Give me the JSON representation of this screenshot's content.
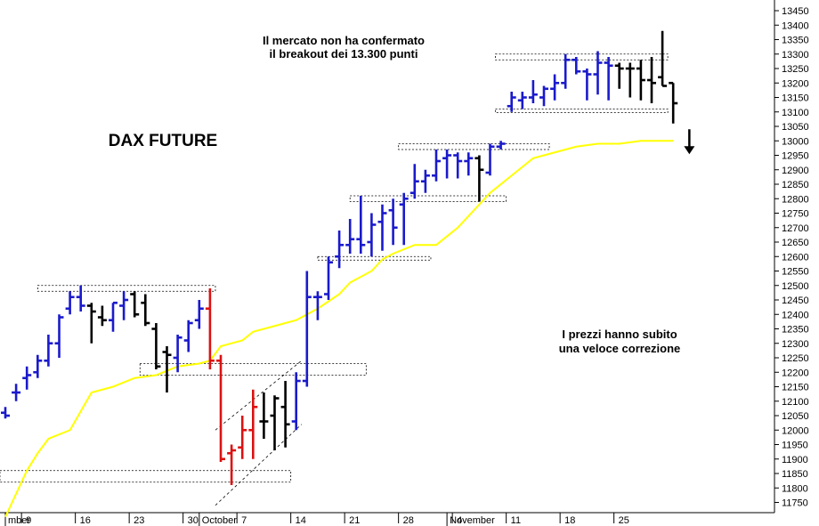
{
  "chart_data": {
    "type": "ohlc",
    "title": "DAX FUTURE",
    "annotations": [
      {
        "lines": [
          "Il mercato non ha confermato",
          "il breakout dei 13.300 punti"
        ]
      },
      {
        "lines": [
          "I prezzi hanno subito",
          "una veloce correzione"
        ]
      }
    ],
    "y_ticks": [
      11750,
      11800,
      11850,
      11900,
      11950,
      12000,
      12050,
      12100,
      12150,
      12200,
      12250,
      12300,
      12350,
      12400,
      12450,
      12500,
      12550,
      12600,
      12650,
      12700,
      12750,
      12800,
      12850,
      12900,
      12950,
      13000,
      13050,
      13100,
      13150,
      13200,
      13250,
      13300,
      13350,
      13400,
      13450
    ],
    "ylim": [
      11700,
      13475
    ],
    "x_ticks": [
      {
        "label": "9",
        "bar": 1.5
      },
      {
        "label": "16",
        "bar": 6.5
      },
      {
        "label": "23",
        "bar": 11.5
      },
      {
        "label": "30",
        "bar": 16.5
      },
      {
        "label": "7",
        "bar": 21.5
      },
      {
        "label": "14",
        "bar": 26.5
      },
      {
        "label": "21",
        "bar": 31.5
      },
      {
        "label": "28",
        "bar": 36.5
      },
      {
        "label": "4",
        "bar": 41.5
      },
      {
        "label": "11",
        "bar": 46.5
      },
      {
        "label": "18",
        "bar": 51.5
      },
      {
        "label": "25",
        "bar": 56.5
      }
    ],
    "month_labels": [
      {
        "label": "mber",
        "bar": 0.0
      },
      {
        "label": "October",
        "bar": 18.0
      },
      {
        "label": "November",
        "bar": 41.0
      }
    ],
    "series": [
      {
        "kind": "ohlc",
        "bars": [
          {
            "o": 12060,
            "h": 12080,
            "l": 12040,
            "c": 12050,
            "color": "#1a1acc"
          },
          {
            "o": 12130,
            "h": 12160,
            "l": 12100,
            "c": 12130,
            "color": "#1a1acc"
          },
          {
            "o": 12180,
            "h": 12220,
            "l": 12140,
            "c": 12190,
            "color": "#1a1acc"
          },
          {
            "o": 12200,
            "h": 12260,
            "l": 12180,
            "c": 12240,
            "color": "#1a1acc"
          },
          {
            "o": 12240,
            "h": 12330,
            "l": 12220,
            "c": 12300,
            "color": "#1a1acc"
          },
          {
            "o": 12300,
            "h": 12400,
            "l": 12250,
            "c": 12390,
            "color": "#1a1acc"
          },
          {
            "o": 12420,
            "h": 12480,
            "l": 12400,
            "c": 12460,
            "color": "#1a1acc"
          },
          {
            "o": 12460,
            "h": 12500,
            "l": 12410,
            "c": 12430,
            "color": "#1a1acc"
          },
          {
            "o": 12430,
            "h": 12440,
            "l": 12300,
            "c": 12410,
            "color": "#000000"
          },
          {
            "o": 12390,
            "h": 12430,
            "l": 12360,
            "c": 12380,
            "color": "#000000"
          },
          {
            "o": 12380,
            "h": 12440,
            "l": 12340,
            "c": 12440,
            "color": "#1a1acc"
          },
          {
            "o": 12430,
            "h": 12480,
            "l": 12380,
            "c": 12450,
            "color": "#1a1acc"
          },
          {
            "o": 12470,
            "h": 12480,
            "l": 12390,
            "c": 12400,
            "color": "#000000"
          },
          {
            "o": 12440,
            "h": 12470,
            "l": 12360,
            "c": 12370,
            "color": "#000000"
          },
          {
            "o": 12350,
            "h": 12370,
            "l": 12210,
            "c": 12220,
            "color": "#000000"
          },
          {
            "o": 12270,
            "h": 12290,
            "l": 12130,
            "c": 12260,
            "color": "#000000"
          },
          {
            "o": 12250,
            "h": 12330,
            "l": 12200,
            "c": 12320,
            "color": "#1a1acc"
          },
          {
            "o": 12310,
            "h": 12380,
            "l": 12270,
            "c": 12370,
            "color": "#1a1acc"
          },
          {
            "o": 12380,
            "h": 12450,
            "l": 12350,
            "c": 12420,
            "color": "#1a1acc"
          },
          {
            "o": 12420,
            "h": 12490,
            "l": 12210,
            "c": 12240,
            "color": "#dd1111"
          },
          {
            "o": 12240,
            "h": 12260,
            "l": 11890,
            "c": 11900,
            "color": "#dd1111"
          },
          {
            "o": 11920,
            "h": 11950,
            "l": 11810,
            "c": 11930,
            "color": "#dd1111"
          },
          {
            "o": 11940,
            "h": 12050,
            "l": 11900,
            "c": 12000,
            "color": "#dd1111"
          },
          {
            "o": 12000,
            "h": 12140,
            "l": 11900,
            "c": 12080,
            "color": "#dd1111"
          },
          {
            "o": 12030,
            "h": 12130,
            "l": 11970,
            "c": 12030,
            "color": "#000000"
          },
          {
            "o": 12050,
            "h": 12120,
            "l": 11930,
            "c": 12110,
            "color": "#000000"
          },
          {
            "o": 12080,
            "h": 12170,
            "l": 11940,
            "c": 12020,
            "color": "#000000"
          },
          {
            "o": 12030,
            "h": 12200,
            "l": 12000,
            "c": 12170,
            "color": "#1a1acc"
          },
          {
            "o": 12170,
            "h": 12550,
            "l": 12150,
            "c": 12460,
            "color": "#1a1acc"
          },
          {
            "o": 12460,
            "h": 12480,
            "l": 12380,
            "c": 12460,
            "color": "#1a1acc"
          },
          {
            "o": 12470,
            "h": 12600,
            "l": 12450,
            "c": 12580,
            "color": "#1a1acc"
          },
          {
            "o": 12600,
            "h": 12690,
            "l": 12560,
            "c": 12640,
            "color": "#1a1acc"
          },
          {
            "o": 12640,
            "h": 12730,
            "l": 12610,
            "c": 12660,
            "color": "#1a1acc"
          },
          {
            "o": 12660,
            "h": 12810,
            "l": 12610,
            "c": 12640,
            "color": "#1a1acc"
          },
          {
            "o": 12650,
            "h": 12750,
            "l": 12600,
            "c": 12710,
            "color": "#1a1acc"
          },
          {
            "o": 12720,
            "h": 12780,
            "l": 12620,
            "c": 12750,
            "color": "#1a1acc"
          },
          {
            "o": 12760,
            "h": 12800,
            "l": 12640,
            "c": 12700,
            "color": "#1a1acc"
          },
          {
            "o": 12780,
            "h": 12820,
            "l": 12640,
            "c": 12800,
            "color": "#1a1acc"
          },
          {
            "o": 12820,
            "h": 12920,
            "l": 12800,
            "c": 12860,
            "color": "#1a1acc"
          },
          {
            "o": 12860,
            "h": 12900,
            "l": 12820,
            "c": 12880,
            "color": "#1a1acc"
          },
          {
            "o": 12880,
            "h": 12970,
            "l": 12860,
            "c": 12930,
            "color": "#1a1acc"
          },
          {
            "o": 12940,
            "h": 12970,
            "l": 12870,
            "c": 12950,
            "color": "#1a1acc"
          },
          {
            "o": 12950,
            "h": 12960,
            "l": 12870,
            "c": 12930,
            "color": "#1a1acc"
          },
          {
            "o": 12930,
            "h": 12960,
            "l": 12880,
            "c": 12940,
            "color": "#1a1acc"
          },
          {
            "o": 12940,
            "h": 12950,
            "l": 12790,
            "c": 12900,
            "color": "#000000"
          },
          {
            "o": 12890,
            "h": 12990,
            "l": 12880,
            "c": 12980,
            "color": "#1a1acc"
          },
          {
            "o": 12980,
            "h": 13000,
            "l": 12970,
            "c": 12990,
            "color": "#1a1acc"
          },
          {
            "o": 13120,
            "h": 13170,
            "l": 13100,
            "c": 13150,
            "color": "#1a1acc"
          },
          {
            "o": 13140,
            "h": 13170,
            "l": 13110,
            "c": 13150,
            "color": "#1a1acc"
          },
          {
            "o": 13150,
            "h": 13210,
            "l": 13130,
            "c": 13160,
            "color": "#1a1acc"
          },
          {
            "o": 13150,
            "h": 13190,
            "l": 13120,
            "c": 13180,
            "color": "#1a1acc"
          },
          {
            "o": 13180,
            "h": 13230,
            "l": 13140,
            "c": 13200,
            "color": "#1a1acc"
          },
          {
            "o": 13200,
            "h": 13300,
            "l": 13180,
            "c": 13280,
            "color": "#1a1acc"
          },
          {
            "o": 13280,
            "h": 13290,
            "l": 13230,
            "c": 13240,
            "color": "#1a1acc"
          },
          {
            "o": 13240,
            "h": 13250,
            "l": 13140,
            "c": 13230,
            "color": "#1a1acc"
          },
          {
            "o": 13230,
            "h": 13310,
            "l": 13160,
            "c": 13270,
            "color": "#1a1acc"
          },
          {
            "o": 13270,
            "h": 13290,
            "l": 13140,
            "c": 13260,
            "color": "#1a1acc"
          },
          {
            "o": 13260,
            "h": 13270,
            "l": 13180,
            "c": 13250,
            "color": "#000000"
          },
          {
            "o": 13250,
            "h": 13270,
            "l": 13150,
            "c": 13250,
            "color": "#000000"
          },
          {
            "o": 13250,
            "h": 13280,
            "l": 13140,
            "c": 13210,
            "color": "#000000"
          },
          {
            "o": 13210,
            "h": 13290,
            "l": 13130,
            "c": 13200,
            "color": "#000000"
          },
          {
            "o": 13220,
            "h": 13380,
            "l": 13190,
            "c": 13190,
            "color": "#000000"
          },
          {
            "o": 13200,
            "h": 13200,
            "l": 13060,
            "c": 13130,
            "color": "#000000"
          }
        ]
      },
      {
        "kind": "line",
        "color": "#ffff00",
        "points": [
          [
            0,
            11700
          ],
          [
            2,
            11860
          ],
          [
            3,
            11920
          ],
          [
            4,
            11970
          ],
          [
            6,
            12000
          ],
          [
            8,
            12130
          ],
          [
            10,
            12150
          ],
          [
            12,
            12180
          ],
          [
            14,
            12190
          ],
          [
            16,
            12220
          ],
          [
            18,
            12230
          ],
          [
            19,
            12240
          ],
          [
            20,
            12290
          ],
          [
            22,
            12310
          ],
          [
            23,
            12340
          ],
          [
            25,
            12360
          ],
          [
            27,
            12380
          ],
          [
            29,
            12420
          ],
          [
            31,
            12470
          ],
          [
            32,
            12510
          ],
          [
            34,
            12550
          ],
          [
            35,
            12590
          ],
          [
            36,
            12610
          ],
          [
            38,
            12640
          ],
          [
            40,
            12640
          ],
          [
            42,
            12700
          ],
          [
            44,
            12780
          ],
          [
            45,
            12820
          ],
          [
            47,
            12880
          ],
          [
            49,
            12940
          ],
          [
            51,
            12960
          ],
          [
            53,
            12980
          ],
          [
            55,
            12990
          ],
          [
            57,
            12990
          ],
          [
            59,
            13000
          ],
          [
            61,
            13000
          ],
          [
            62,
            13000
          ]
        ]
      }
    ],
    "boxes": [
      {
        "x0": -0.5,
        "x1": 26.5,
        "y0": 11820,
        "y1": 11860
      },
      {
        "x0": 3.0,
        "x1": 19.5,
        "y0": 12480,
        "y1": 12500
      },
      {
        "x0": 12.5,
        "x1": 33.5,
        "y0": 12190,
        "y1": 12230
      },
      {
        "x0": 29.0,
        "x1": 39.5,
        "y0": 12590,
        "y1": 12600
      },
      {
        "x0": 32.0,
        "x1": 46.5,
        "y0": 12790,
        "y1": 12810
      },
      {
        "x0": 36.5,
        "x1": 50.5,
        "y0": 12970,
        "y1": 12990
      },
      {
        "x0": 45.5,
        "x1": 61.5,
        "y0": 13280,
        "y1": 13300
      },
      {
        "x0": 45.5,
        "x1": 61.5,
        "y0": 13100,
        "y1": 13110
      }
    ],
    "channel": [
      {
        "x0": 19.5,
        "y0": 11740,
        "x1": 27.5,
        "y1": 12020
      },
      {
        "x0": 19.5,
        "y0": 12000,
        "x1": 27.5,
        "y1": 12240
      }
    ],
    "arrow": {
      "bar": 63.5,
      "from": 13040,
      "to": 12960
    },
    "grid": false,
    "legend": "none"
  }
}
